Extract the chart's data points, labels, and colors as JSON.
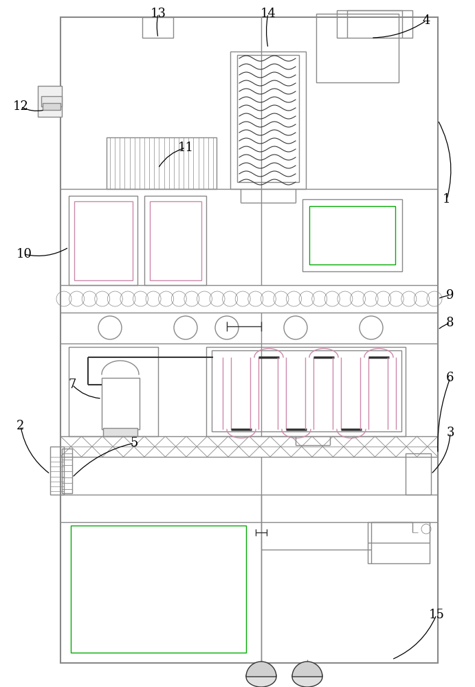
{
  "bg_color": "#ffffff",
  "lc": "#aaaaaa",
  "dc": "#333333",
  "mc": "#888888",
  "gc": "#00aa00",
  "pink": "#cc88aa",
  "figsize": [
    6.91,
    10.0
  ],
  "dpi": 100
}
